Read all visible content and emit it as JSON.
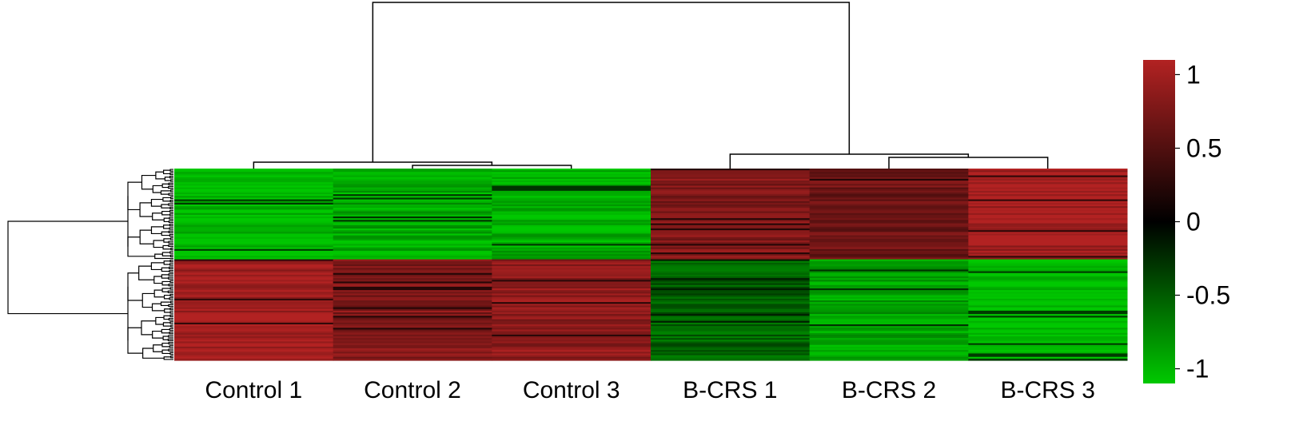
{
  "chart_data": {
    "type": "heatmap",
    "columns": [
      "Control 1",
      "Control 2",
      "Control 3",
      "B-CRS 1",
      "B-CRS 2",
      "B-CRS 3"
    ],
    "legend": {
      "ticks": [
        "1",
        "0.5",
        "0",
        "-0.5",
        "-1"
      ],
      "tick_values": [
        1,
        0.5,
        0,
        -0.5,
        -1
      ],
      "range": [
        -1.1,
        1.1
      ],
      "colors": {
        "low": "#00C800",
        "mid": "#000000",
        "high": "#B22222"
      }
    },
    "clusters": [
      {
        "rows": 53,
        "column_values": [
          -0.95,
          -0.85,
          -0.88,
          0.72,
          0.62,
          0.92
        ],
        "values_seed": 7
      },
      {
        "rows": 59,
        "column_values": [
          0.92,
          0.72,
          0.8,
          -0.48,
          -0.82,
          -0.97
        ],
        "values_seed": 19
      }
    ],
    "column_dendrogram": "((Control 1,(Control 2,Control 3)),(B-CRS 1,(B-CRS 2,B-CRS 3)))",
    "row_dendrogram": "two main clusters"
  }
}
